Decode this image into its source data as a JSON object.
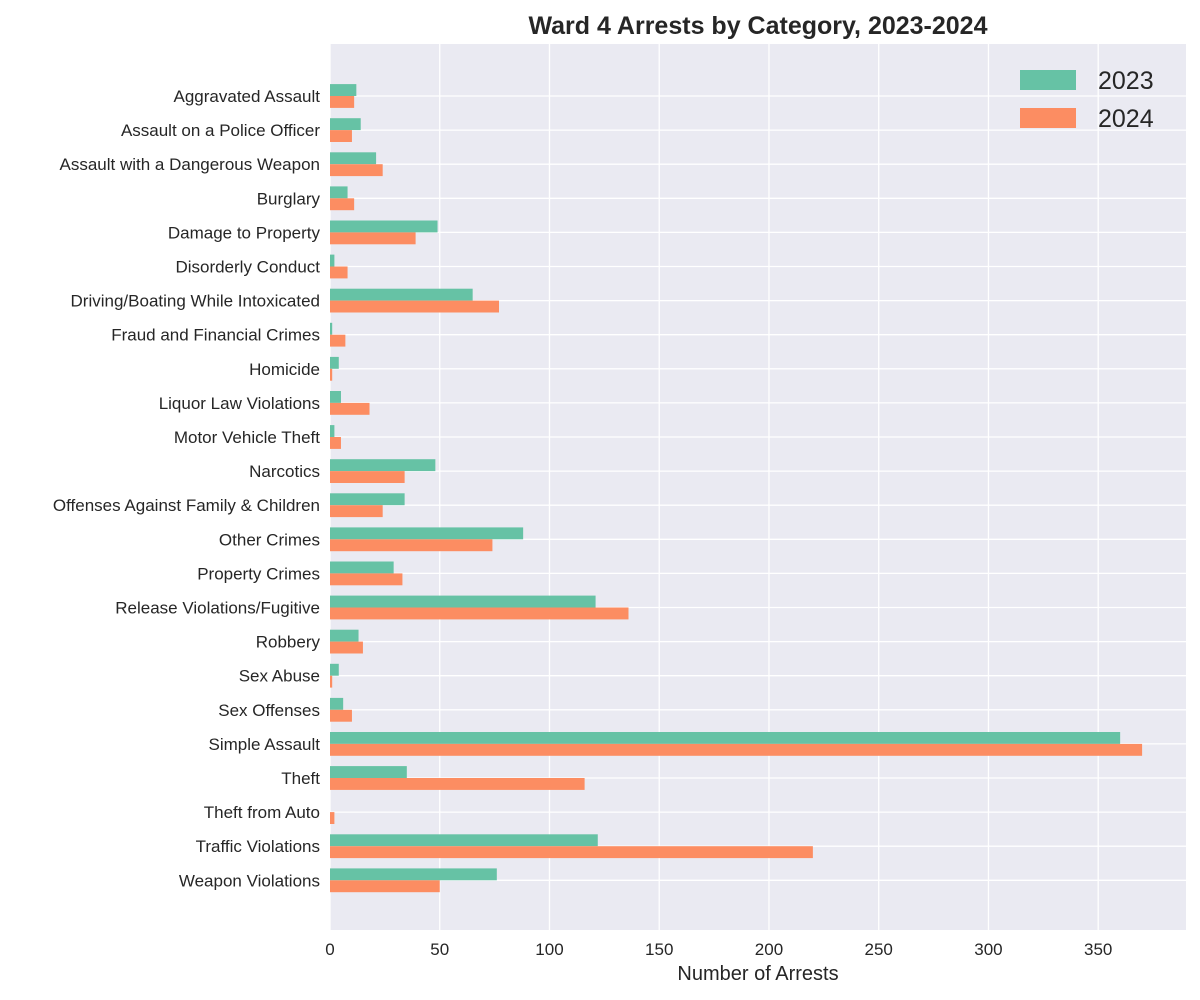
{
  "chart_data": {
    "type": "bar",
    "orientation": "horizontal",
    "title": "Ward 4 Arrests by Category, 2023-2024",
    "xlabel": "Number of Arrests",
    "ylabel": "",
    "xlim": [
      0,
      390
    ],
    "xticks": [
      0,
      50,
      100,
      150,
      200,
      250,
      300,
      350
    ],
    "grid": true,
    "legend_position": "top-right",
    "categories": [
      "Aggravated Assault",
      "Assault on a Police Officer",
      "Assault with a Dangerous Weapon",
      "Burglary",
      "Damage to Property",
      "Disorderly Conduct",
      "Driving/Boating While Intoxicated",
      "Fraud and Financial Crimes",
      "Homicide",
      "Liquor Law Violations",
      "Motor Vehicle Theft",
      "Narcotics",
      "Offenses Against Family & Children",
      "Other Crimes",
      "Property Crimes",
      "Release Violations/Fugitive",
      "Robbery",
      "Sex Abuse",
      "Sex Offenses",
      "Simple Assault",
      "Theft",
      "Theft from Auto",
      "Traffic Violations",
      "Weapon Violations"
    ],
    "series": [
      {
        "name": "2023",
        "color": "#66c2a5",
        "values": [
          12,
          14,
          21,
          8,
          49,
          2,
          65,
          1,
          4,
          5,
          2,
          48,
          34,
          88,
          29,
          121,
          13,
          4,
          6,
          360,
          35,
          0,
          122,
          76
        ]
      },
      {
        "name": "2024",
        "color": "#fc8d62",
        "values": [
          11,
          10,
          24,
          11,
          39,
          8,
          77,
          7,
          1,
          18,
          5,
          34,
          24,
          74,
          33,
          136,
          15,
          1,
          10,
          370,
          116,
          2,
          220,
          50
        ]
      }
    ],
    "colors": {
      "plot_background": "#eaeaf2",
      "grid": "#ffffff",
      "text": "#262626"
    }
  }
}
